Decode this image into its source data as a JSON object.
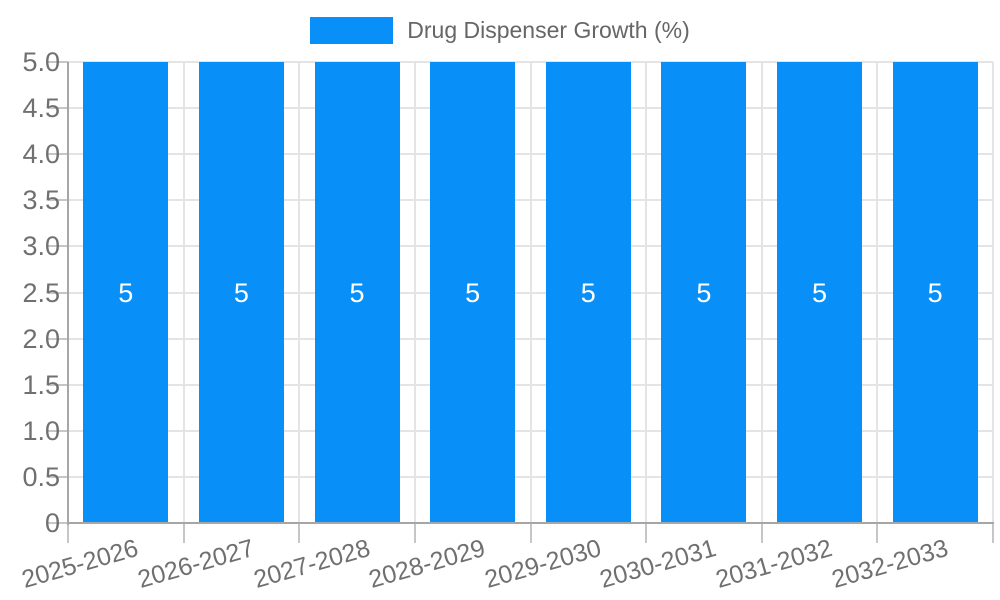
{
  "chart_data": {
    "type": "bar",
    "title": "Drug Dispenser Growth (%)",
    "categories": [
      "2025-2026",
      "2026-2027",
      "2027-2028",
      "2028-2029",
      "2029-2030",
      "2030-2031",
      "2031-2032",
      "2032-2033"
    ],
    "values": [
      5,
      5,
      5,
      5,
      5,
      5,
      5,
      5
    ],
    "bar_labels": [
      "5",
      "5",
      "5",
      "5",
      "5",
      "5",
      "5",
      "5"
    ],
    "xlabel": "",
    "ylabel": "",
    "ylim": [
      0,
      5
    ],
    "ytick_labels": [
      "0",
      "0.5",
      "1.0",
      "1.5",
      "2.0",
      "2.5",
      "3.0",
      "3.5",
      "4.0",
      "4.5",
      "5.0"
    ],
    "grid": true,
    "legend_position": "top",
    "colors": {
      "bar": "#0890F8",
      "grid": "#e4e4e4",
      "axis": "#a6a6a6",
      "tick": "#c6c6c6",
      "tick_label": "#707070",
      "legend_text": "#666666",
      "bar_label": "#ffffff",
      "background": "#ffffff"
    }
  }
}
